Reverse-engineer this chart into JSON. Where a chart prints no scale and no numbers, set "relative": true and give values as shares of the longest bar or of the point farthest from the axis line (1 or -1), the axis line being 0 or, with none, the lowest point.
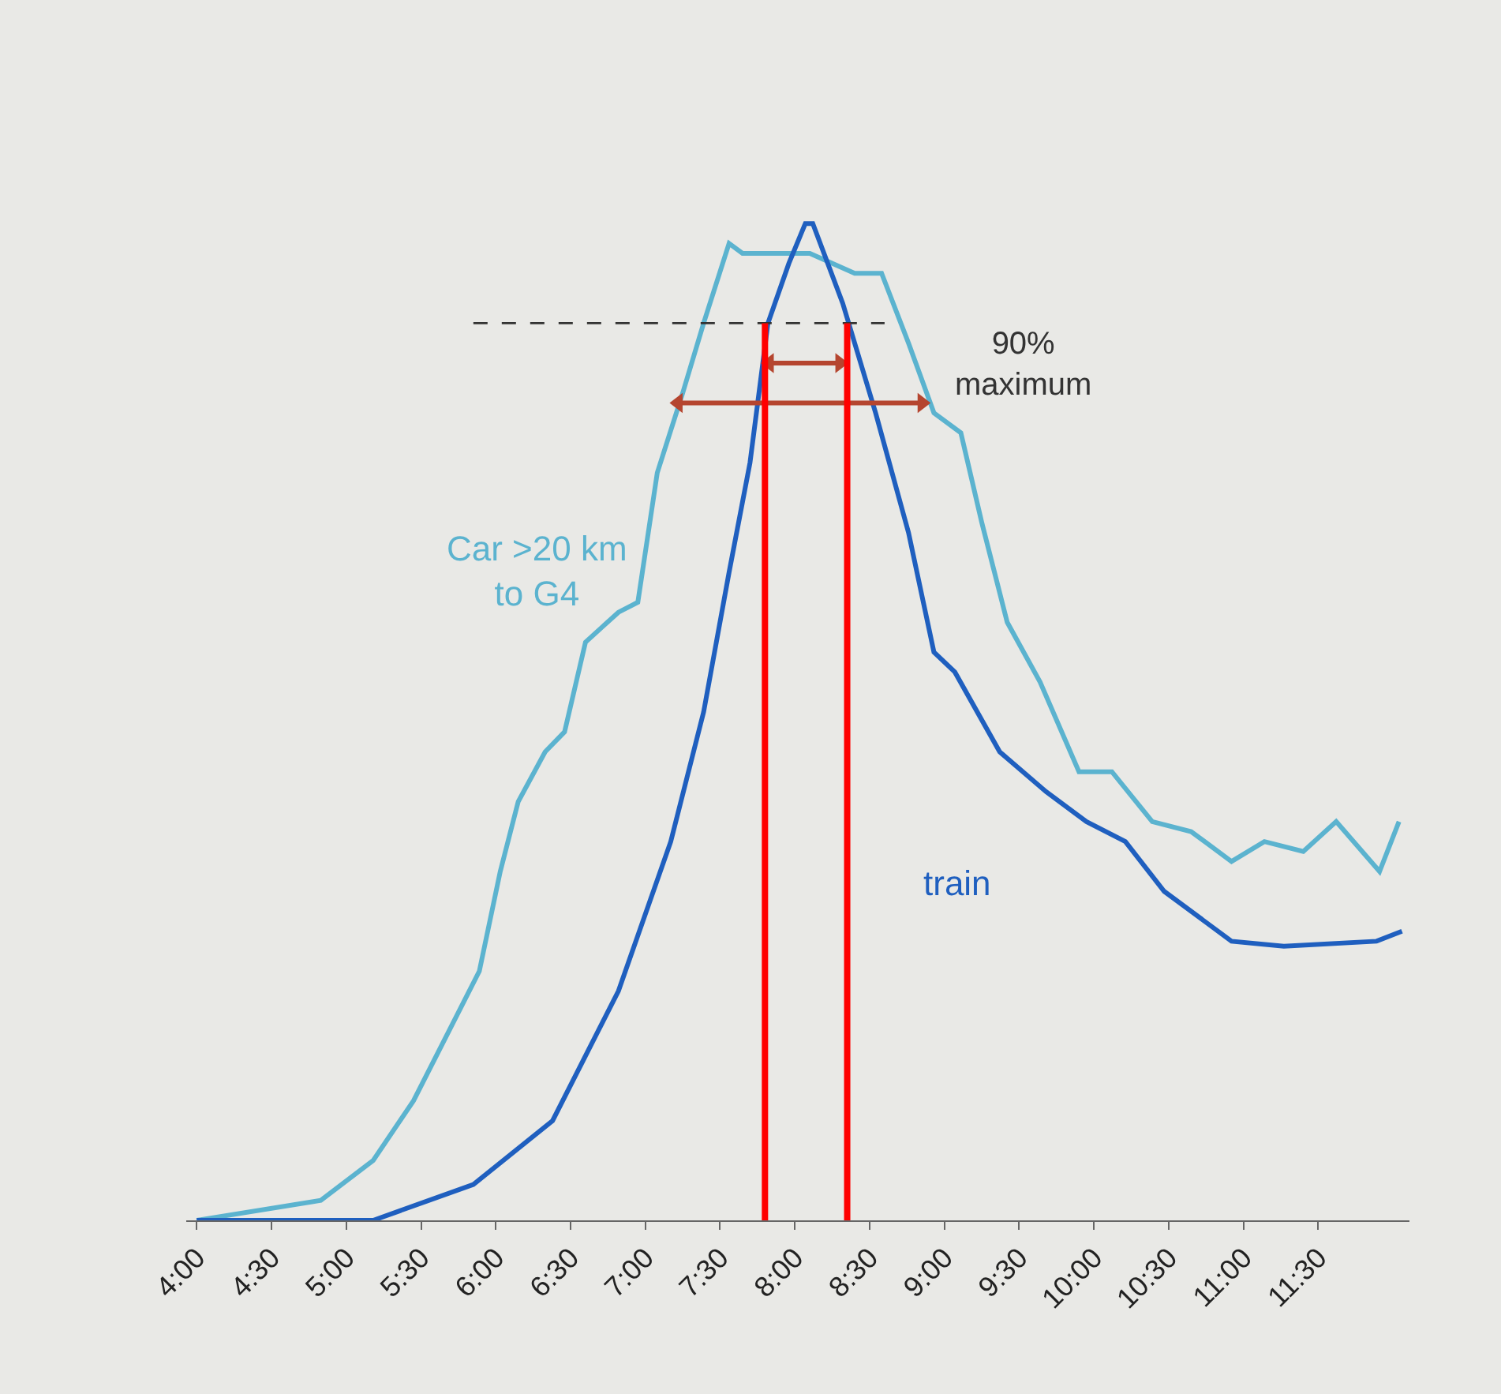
{
  "chart_data": {
    "type": "line",
    "relative": true,
    "legend": false,
    "grid": false,
    "marker": "none",
    "line_style": "solid",
    "xlim": [
      3.93,
      12.11
    ],
    "xticks": [
      {
        "value": 4,
        "label": "4:00"
      },
      {
        "value": 4.5,
        "label": "4:30"
      },
      {
        "value": 5,
        "label": "5:00"
      },
      {
        "value": 5.5,
        "label": "5:30"
      },
      {
        "value": 6,
        "label": "6:00"
      },
      {
        "value": 6.5,
        "label": "6:30"
      },
      {
        "value": 7,
        "label": "7:00"
      },
      {
        "value": 7.5,
        "label": "7:30"
      },
      {
        "value": 8,
        "label": "8:00"
      },
      {
        "value": 8.5,
        "label": "8:30"
      },
      {
        "value": 9,
        "label": "9:00"
      },
      {
        "value": 9.5,
        "label": "9:30"
      },
      {
        "value": 10,
        "label": "10:00"
      },
      {
        "value": 10.5,
        "label": "10:30"
      },
      {
        "value": 11,
        "label": "11:00"
      },
      {
        "value": 11.5,
        "label": "11:30"
      }
    ],
    "series": [
      {
        "name": "Car >20 km\nto G4",
        "color": "#5bb3cf",
        "x": [
          4.0,
          4.83,
          5.18,
          5.45,
          5.67,
          5.89,
          6.03,
          6.15,
          6.33,
          6.46,
          6.6,
          6.82,
          6.95,
          7.08,
          7.25,
          7.39,
          7.56,
          7.65,
          7.9,
          8.1,
          8.4,
          8.58,
          8.76,
          8.93,
          9.11,
          9.25,
          9.42,
          9.64,
          9.9,
          10.12,
          10.39,
          10.65,
          10.92,
          11.14,
          11.4,
          11.62,
          11.91,
          12.04
        ],
        "values": [
          0.0,
          0.02,
          0.06,
          0.12,
          0.185,
          0.25,
          0.35,
          0.42,
          0.47,
          0.49,
          0.58,
          0.61,
          0.62,
          0.75,
          0.83,
          0.9,
          0.98,
          0.97,
          0.97,
          0.97,
          0.95,
          0.95,
          0.88,
          0.81,
          0.79,
          0.7,
          0.6,
          0.54,
          0.45,
          0.45,
          0.4,
          0.39,
          0.36,
          0.38,
          0.37,
          0.4,
          0.35,
          0.4
        ]
      },
      {
        "name": "train",
        "color": "#1f5fbf",
        "x": [
          4.0,
          5.18,
          5.85,
          6.38,
          6.82,
          7.17,
          7.39,
          7.56,
          7.7,
          7.82,
          7.96,
          8.07,
          8.12,
          8.32,
          8.54,
          8.76,
          8.93,
          9.07,
          9.37,
          9.68,
          9.95,
          10.21,
          10.47,
          10.92,
          11.27,
          11.89,
          12.06
        ],
        "values": [
          0.0,
          0.0,
          0.036,
          0.1,
          0.23,
          0.38,
          0.51,
          0.65,
          0.76,
          0.9,
          0.96,
          1.0,
          1.0,
          0.92,
          0.81,
          0.69,
          0.57,
          0.55,
          0.47,
          0.43,
          0.4,
          0.38,
          0.33,
          0.28,
          0.275,
          0.28,
          0.29
        ]
      },
      {
        "type": "line",
        "line_style": "dashed",
        "color": "#333333",
        "x": [
          5.85,
          8.6
        ],
        "values": [
          0.9,
          0.9
        ]
      },
      {
        "type": "line",
        "marker": "triangle",
        "color": "#b5452f",
        "x": [
          7.83,
          8.3
        ],
        "values": [
          0.86,
          0.86
        ]
      },
      {
        "type": "line",
        "marker": "triangle",
        "color": "#b5452f",
        "x": [
          7.22,
          8.85
        ],
        "values": [
          0.82,
          0.82
        ]
      }
    ],
    "annotations": [
      "90%\nmaximum"
    ],
    "ref_lines": [
      {
        "axis": "x",
        "value": 7.8,
        "color": "#ff0000"
      },
      {
        "axis": "x",
        "value": 8.35,
        "color": "#ff0000"
      }
    ]
  }
}
